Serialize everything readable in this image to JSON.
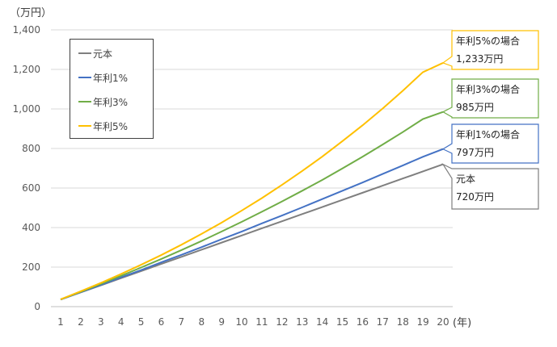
{
  "chart_data": {
    "type": "line",
    "y_unit_label": "（万円）",
    "x_unit_label": "(年)",
    "x": [
      1,
      2,
      3,
      4,
      5,
      6,
      7,
      8,
      9,
      10,
      11,
      12,
      13,
      14,
      15,
      16,
      17,
      18,
      19,
      20
    ],
    "ylim": [
      0,
      1400
    ],
    "y_ticks": [
      "0",
      "200",
      "400",
      "600",
      "800",
      "1,000",
      "1,200",
      "1,400"
    ],
    "y_tick_values": [
      0,
      200,
      400,
      600,
      800,
      1000,
      1200,
      1400
    ],
    "grid": true,
    "legend_position": "top-left",
    "series": [
      {
        "name": "元本",
        "color": "#7f7f7f",
        "values": [
          36,
          72,
          108,
          144,
          180,
          216,
          252,
          288,
          324,
          360,
          396,
          432,
          468,
          504,
          540,
          576,
          612,
          648,
          684,
          720
        ]
      },
      {
        "name": "年利1%",
        "color": "#4472c4",
        "values": [
          36,
          73,
          110,
          148,
          185,
          224,
          262,
          301,
          341,
          380,
          421,
          461,
          502,
          544,
          586,
          628,
          671,
          714,
          758,
          797
        ]
      },
      {
        "name": "年利3%",
        "color": "#70ad47",
        "values": [
          37,
          75,
          115,
          156,
          198,
          241,
          286,
          332,
          380,
          429,
          480,
          532,
          586,
          641,
          699,
          758,
          820,
          883,
          949,
          985
        ]
      },
      {
        "name": "年利5%",
        "color": "#ffc000",
        "values": [
          37,
          78,
          120,
          165,
          212,
          261,
          313,
          368,
          425,
          486,
          549,
          616,
          686,
          759,
          837,
          917,
          1002,
          1092,
          1186,
          1233
        ]
      }
    ],
    "callouts": [
      {
        "line1": "年利5%の場合",
        "line2": "1,233万円",
        "color": "#ffc000"
      },
      {
        "line1": "年利3%の場合",
        "line2": "985万円",
        "color": "#70ad47"
      },
      {
        "line1": "年利1%の場合",
        "line2": "797万円",
        "color": "#4472c4"
      },
      {
        "line1": "元本",
        "line2": "720万円",
        "color": "#7f7f7f"
      }
    ]
  }
}
